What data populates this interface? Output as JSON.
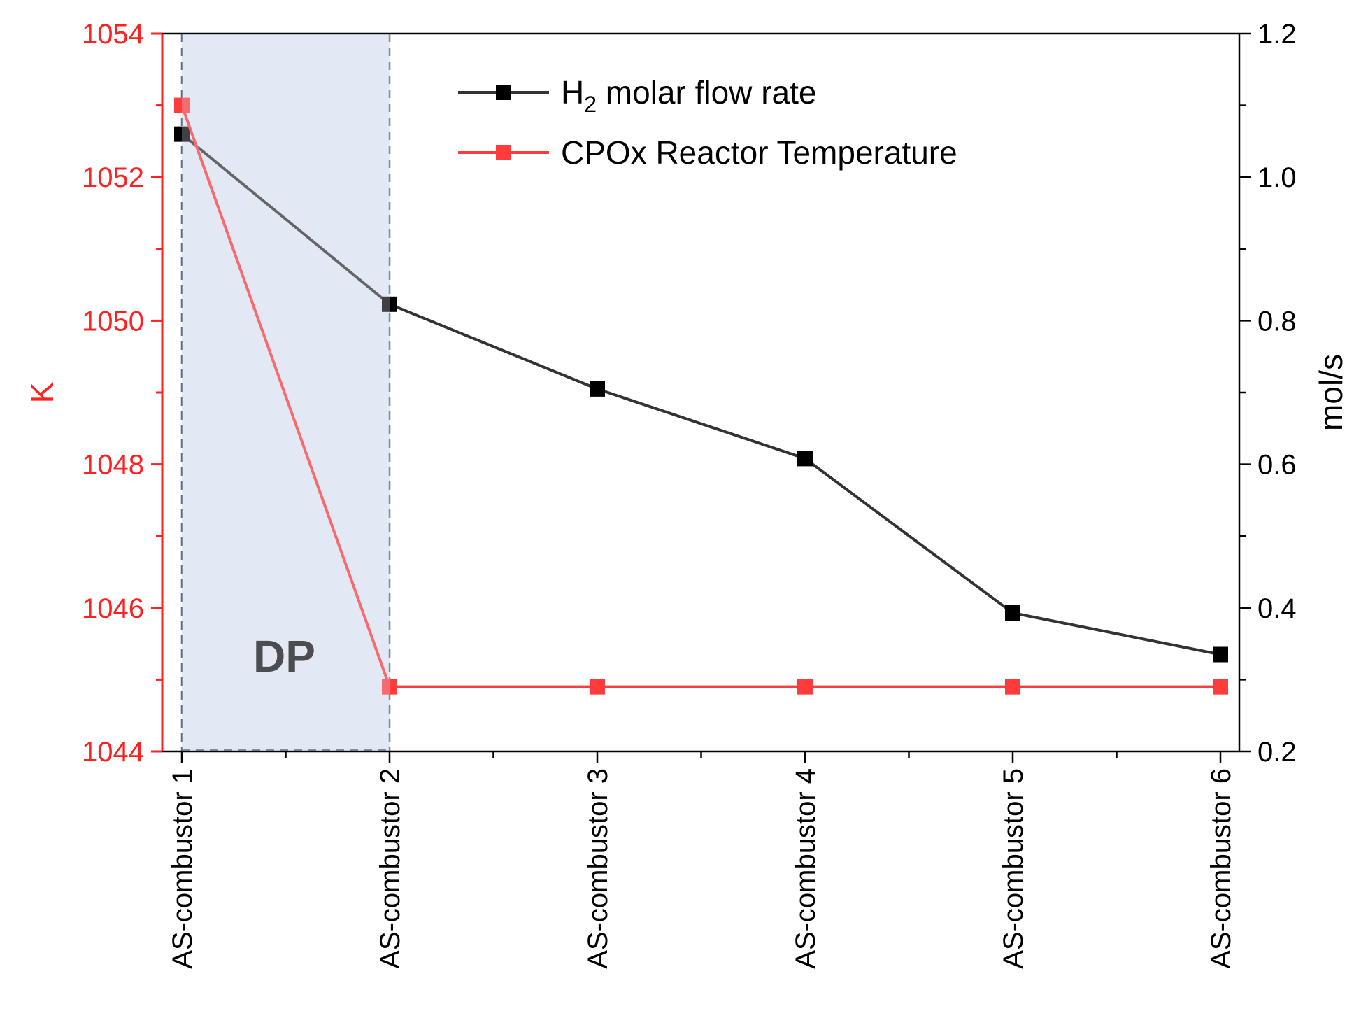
{
  "chart_data": {
    "type": "line",
    "categories": [
      "AS-combustor 1",
      "AS-combustor 2",
      "AS-combustor 3",
      "AS-combustor 4",
      "AS-combustor 5",
      "AS-combustor 6"
    ],
    "left_axis": {
      "label": "K",
      "range": [
        1044,
        1054
      ],
      "ticks": [
        "1044",
        "1046",
        "1048",
        "1050",
        "1052",
        "1054"
      ],
      "color": "#ff2020"
    },
    "right_axis": {
      "label": "mol/s",
      "range": [
        0.2,
        1.2
      ],
      "ticks": [
        "0.2",
        "0.4",
        "0.6",
        "0.8",
        "1.0",
        "1.2"
      ],
      "color": "#000000"
    },
    "series": [
      {
        "name_main": "H",
        "name_sub": "2",
        "name_rest": " molar flow rate",
        "axis": "right",
        "color": "#333333",
        "values": [
          1.06,
          0.823,
          0.705,
          0.608,
          0.393,
          0.335
        ]
      },
      {
        "name": "CPOx Reactor Temperature",
        "axis": "left",
        "color": "#ff3b3b",
        "values": [
          1053.0,
          1044.9,
          1044.9,
          1044.9,
          1044.9,
          1044.9
        ]
      }
    ],
    "shaded_region": {
      "label": "DP",
      "from_category": 0,
      "to_category": 1,
      "color": "#e3e8f5"
    },
    "grid": false,
    "legend_position": "top-right"
  }
}
